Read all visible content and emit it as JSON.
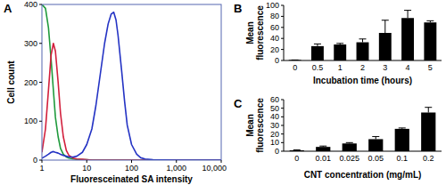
{
  "chart_data": [
    {
      "type": "line",
      "title": "A",
      "x_label": "Fluoresceinated SA intensity",
      "y_label": "Cell count",
      "log": "x",
      "x": [
        1,
        1.2,
        1.4,
        1.6,
        1.8,
        2,
        2.3,
        2.6,
        3,
        3.5,
        4,
        5,
        6,
        8,
        10,
        13,
        16,
        20,
        25,
        30,
        35,
        40,
        45,
        50,
        60,
        70,
        80,
        100,
        130,
        160,
        200,
        300,
        1000,
        10000
      ],
      "series": [
        {
          "color": "#1f9a3c",
          "values": [
            400,
            390,
            340,
            260,
            180,
            110,
            60,
            30,
            15,
            8,
            5,
            3,
            2,
            1,
            1,
            0,
            0,
            0,
            0,
            0,
            0,
            0,
            0,
            0,
            0,
            0,
            0,
            0,
            0,
            0,
            0,
            0,
            0,
            0
          ]
        },
        {
          "color": "#d21f3c",
          "values": [
            20,
            80,
            180,
            270,
            300,
            280,
            200,
            120,
            60,
            25,
            12,
            5,
            3,
            2,
            1,
            0,
            0,
            0,
            0,
            0,
            0,
            0,
            0,
            0,
            0,
            0,
            0,
            0,
            0,
            0,
            0,
            0,
            0,
            0
          ]
        },
        {
          "color": "#2433c4",
          "values": [
            5,
            10,
            15,
            20,
            22,
            20,
            18,
            15,
            12,
            10,
            8,
            8,
            10,
            20,
            40,
            80,
            140,
            220,
            300,
            350,
            375,
            380,
            360,
            320,
            230,
            150,
            90,
            40,
            15,
            6,
            3,
            1,
            0,
            0
          ]
        }
      ],
      "xlim": [
        1,
        10000
      ],
      "xticks": [
        1,
        10,
        100,
        {
          "value": 1000,
          "label": "1,000"
        },
        {
          "value": 10000,
          "label": "10,000"
        }
      ],
      "ylim": [
        0,
        400
      ],
      "yticks": [
        0,
        100,
        200,
        300,
        400
      ]
    },
    {
      "type": "bar",
      "title": "B",
      "x_label": "Incubation time (hours)",
      "y_label": "Mean fluorescence",
      "categories": [
        "0",
        "0.5",
        "1",
        "2",
        "3",
        "4",
        "5"
      ],
      "values": [
        1,
        26,
        29,
        33,
        50,
        77,
        69
      ],
      "errors": [
        0,
        4,
        2,
        6,
        23,
        14,
        3
      ],
      "color": "#000000",
      "ylim": [
        0,
        100
      ],
      "yticks": [
        0,
        20,
        40,
        60,
        80,
        100
      ]
    },
    {
      "type": "bar",
      "title": "C",
      "x_label": "CNT concentration (mg/mL)",
      "y_label": "Mean fluorescence",
      "categories": [
        "0",
        "0.01",
        "0.025",
        "0.05",
        "0.1",
        "0.2"
      ],
      "values": [
        1,
        5,
        9,
        14,
        26,
        45
      ],
      "errors": [
        0.5,
        1,
        1,
        3,
        1,
        6
      ],
      "color": "#000000",
      "ylim": [
        0,
        60
      ],
      "yticks": [
        0,
        10,
        20,
        30,
        40,
        50,
        60
      ]
    }
  ]
}
